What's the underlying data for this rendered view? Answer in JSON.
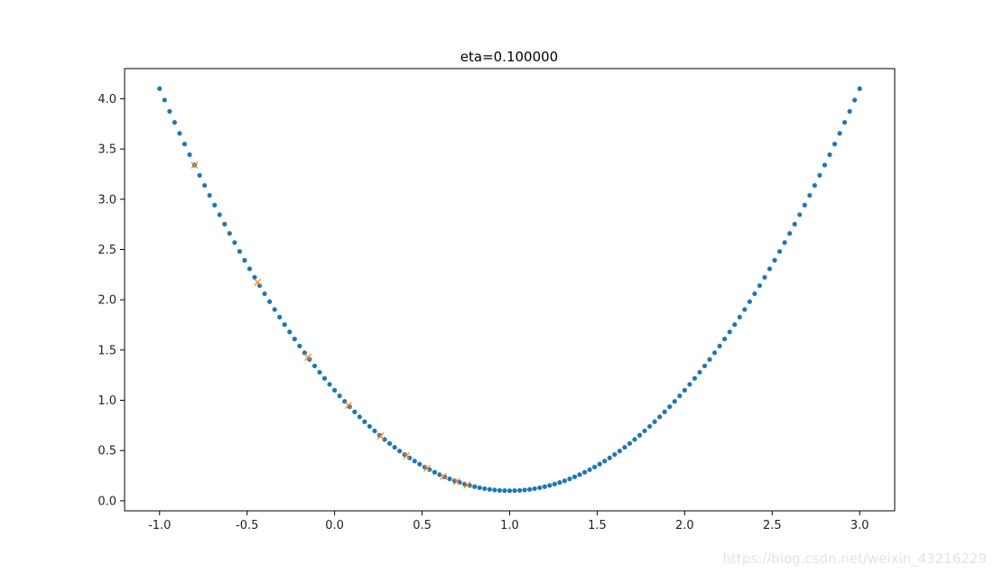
{
  "chart_data": {
    "type": "scatter",
    "title": "eta=0.100000",
    "xlabel": "",
    "ylabel": "",
    "xlim": [
      -1.2,
      3.2
    ],
    "ylim": [
      -0.1,
      4.3
    ],
    "xticks": [
      "-1.0",
      "-0.5",
      "0.0",
      "0.5",
      "1.0",
      "1.5",
      "2.0",
      "2.5",
      "3.0"
    ],
    "yticks": [
      "0.0",
      "0.5",
      "1.0",
      "1.5",
      "2.0",
      "2.5",
      "3.0",
      "3.5",
      "4.0"
    ],
    "grid": false,
    "series": [
      {
        "marker": "dot",
        "color": "#1f77b4",
        "function": "y = (x - 1)^2 + 0.1",
        "x_start": -1.0,
        "x_end": 3.0,
        "count": 141
      },
      {
        "marker": "x",
        "color": "#ff7f0e",
        "points": [
          {
            "x": -0.8,
            "y": 3.34
          },
          {
            "x": -0.44,
            "y": 2.1736
          },
          {
            "x": -0.152,
            "y": 1.427
          },
          {
            "x": 0.0784,
            "y": 0.9493
          },
          {
            "x": 0.2627,
            "y": 0.6436
          },
          {
            "x": 0.4102,
            "y": 0.4479
          },
          {
            "x": 0.5281,
            "y": 0.3227
          },
          {
            "x": 0.6225,
            "y": 0.2425
          },
          {
            "x": 0.698,
            "y": 0.1912
          },
          {
            "x": 0.7584,
            "y": 0.1584
          }
        ]
      }
    ]
  },
  "watermark": "https://blog.csdn.net/weixin_43216229"
}
